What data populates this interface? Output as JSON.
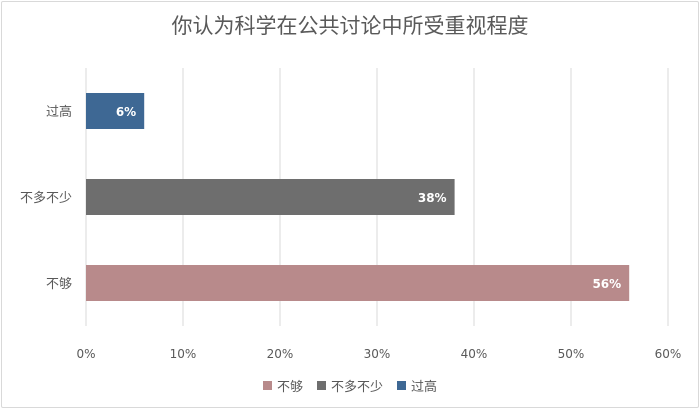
{
  "chart_data": {
    "type": "bar",
    "orientation": "horizontal",
    "title": "你认为科学在公共讨论中所受重视程度",
    "categories": [
      "过高",
      "不多不少",
      "不够"
    ],
    "values": [
      6,
      38,
      56
    ],
    "value_labels": [
      "6%",
      "38%",
      "56%"
    ],
    "colors": [
      "#3e6894",
      "#6e6e6e",
      "#b88a8b"
    ],
    "xlim": [
      0,
      60
    ],
    "xticks": [
      0,
      10,
      20,
      30,
      40,
      50,
      60
    ],
    "xtick_labels": [
      "0%",
      "10%",
      "20%",
      "30%",
      "40%",
      "50%",
      "60%"
    ],
    "grid": true,
    "legend_position": "bottom",
    "legend": [
      {
        "label": "不够",
        "color": "#b88a8b"
      },
      {
        "label": "不多不少",
        "color": "#6e6e6e"
      },
      {
        "label": "过高",
        "color": "#3e6894"
      }
    ]
  }
}
